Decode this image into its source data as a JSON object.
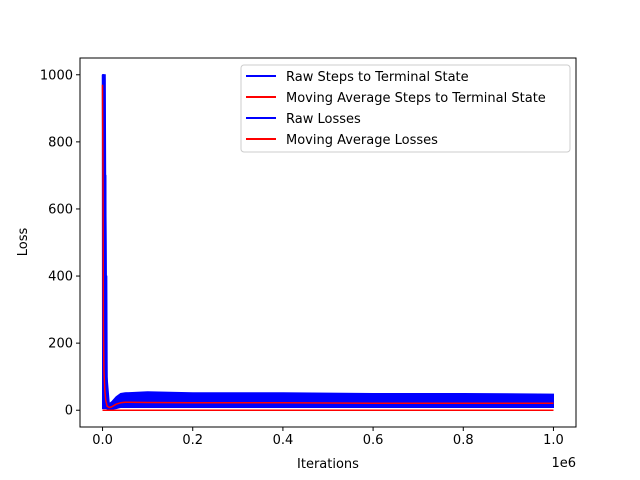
{
  "chart_data": {
    "type": "line",
    "title": "",
    "xlabel": "Iterations",
    "ylabel": "Loss",
    "x_offset_label": "1e6",
    "xlim": [
      -50000,
      1050000
    ],
    "ylim": [
      -50,
      1050
    ],
    "xticks": [
      0,
      200000,
      400000,
      600000,
      800000,
      1000000
    ],
    "xtick_labels": [
      "0.0",
      "0.2",
      "0.4",
      "0.6",
      "0.8",
      "1.0"
    ],
    "yticks": [
      0,
      200,
      400,
      600,
      800,
      1000
    ],
    "ytick_labels": [
      "0",
      "200",
      "400",
      "600",
      "800",
      "1000"
    ],
    "grid": false,
    "legend_position": "upper right",
    "series": [
      {
        "name": "Raw Steps to Terminal State",
        "color": "#0000ff",
        "x": [
          0,
          500,
          1000,
          2000,
          3000,
          4000,
          5000,
          6000,
          7000,
          8000,
          9000,
          10000,
          15000,
          20000,
          30000,
          40000,
          50000,
          100000,
          200000,
          400000,
          600000,
          800000,
          1000000
        ],
        "values": [
          1000,
          12,
          1000,
          15,
          1000,
          8,
          990,
          20,
          700,
          12,
          400,
          10,
          5,
          8,
          25,
          38,
          35,
          38,
          36,
          36,
          36,
          35,
          35
        ],
        "band_low": [
          5,
          5,
          5,
          5,
          5,
          5,
          5,
          5,
          5,
          5,
          5,
          3,
          2,
          3,
          5,
          8,
          8,
          8,
          8,
          8,
          8,
          8,
          8
        ],
        "band_high": [
          1000,
          1000,
          1000,
          1000,
          1000,
          1000,
          1000,
          1000,
          700,
          500,
          300,
          100,
          20,
          25,
          40,
          50,
          52,
          55,
          52,
          52,
          50,
          50,
          48
        ]
      },
      {
        "name": "Moving Average Steps to Terminal State",
        "color": "#ff0000",
        "x": [
          0,
          1000,
          2000,
          3000,
          5000,
          7000,
          10000,
          15000,
          20000,
          30000,
          40000,
          50000,
          100000,
          200000,
          400000,
          600000,
          800000,
          1000000
        ],
        "values": [
          970,
          700,
          250,
          120,
          60,
          30,
          12,
          8,
          10,
          18,
          22,
          24,
          23,
          22,
          22,
          21,
          21,
          21
        ]
      },
      {
        "name": "Raw Losses",
        "color": "#0000ff",
        "x": [
          0,
          1000000
        ],
        "values": [
          0,
          0
        ]
      },
      {
        "name": "Moving Average Losses",
        "color": "#ff0000",
        "x": [
          0,
          1000000
        ],
        "values": [
          0,
          0
        ]
      }
    ]
  }
}
